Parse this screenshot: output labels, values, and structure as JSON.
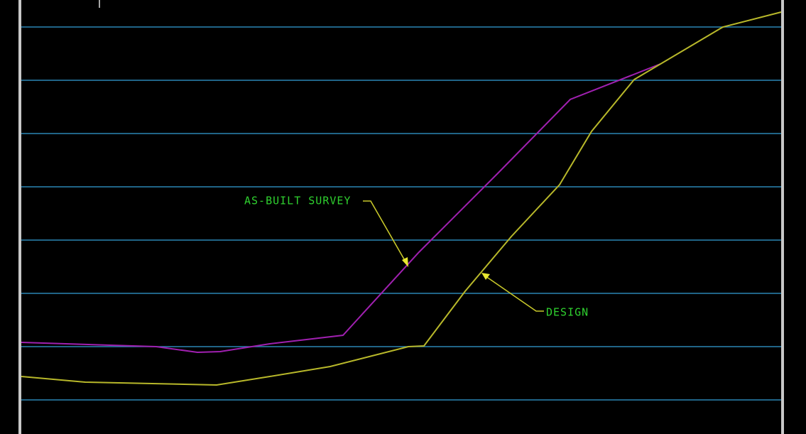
{
  "labels": {
    "as_built": "AS-BUILT SURVEY",
    "design": "DESIGN"
  }
}
